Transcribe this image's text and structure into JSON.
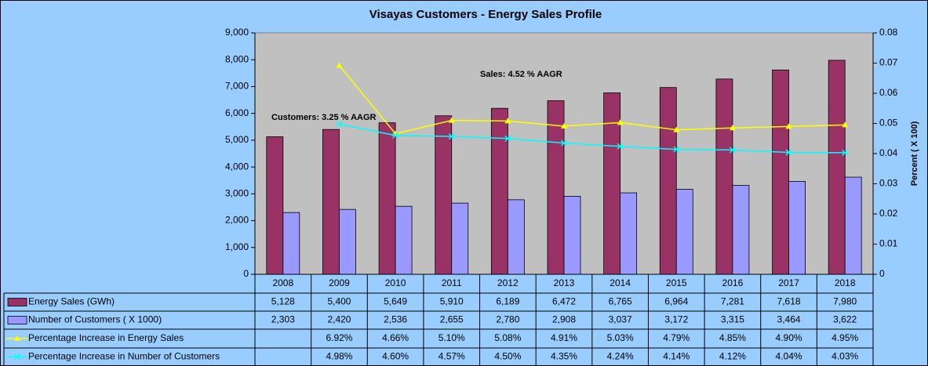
{
  "chart_data": {
    "type": "bar",
    "title": "Visayas Customers - Energy Sales Profile",
    "y2_label": "Percent ( X 100)",
    "annotations": [
      "Sales: 4.52 % AAGR",
      "Customers: 3.25 % AAGR"
    ],
    "categories": [
      "2008",
      "2009",
      "2010",
      "2011",
      "2012",
      "2013",
      "2014",
      "2015",
      "2016",
      "2017",
      "2018"
    ],
    "series": [
      {
        "name": "Energy Sales (GWh)",
        "type": "bar",
        "color": "#993366",
        "values": [
          5128,
          5400,
          5649,
          5910,
          6189,
          6472,
          6765,
          6964,
          7281,
          7618,
          7980
        ],
        "value_labels": [
          "5,128",
          "5,400",
          "5,649",
          "5,910",
          "6,189",
          "6,472",
          "6,765",
          "6,964",
          "7,281",
          "7,618",
          "7,980"
        ]
      },
      {
        "name": "Number of Customers ( X 1000)",
        "type": "bar",
        "color": "#9999ff",
        "values": [
          2303,
          2420,
          2536,
          2655,
          2780,
          2908,
          3037,
          3172,
          3315,
          3464,
          3622
        ],
        "value_labels": [
          "2,303",
          "2,420",
          "2,536",
          "2,655",
          "2,780",
          "2,908",
          "3,037",
          "3,172",
          "3,315",
          "3,464",
          "3,622"
        ]
      },
      {
        "name": "Percentage Increase in Energy Sales",
        "type": "line",
        "axis": "y2",
        "color": "#ffff00",
        "marker": "triangle",
        "values": [
          null,
          0.0692,
          0.0466,
          0.051,
          0.0508,
          0.0491,
          0.0503,
          0.0479,
          0.0485,
          0.049,
          0.0495
        ],
        "value_labels": [
          null,
          "6.92%",
          "4.66%",
          "5.10%",
          "5.08%",
          "4.91%",
          "5.03%",
          "4.79%",
          "4.85%",
          "4.90%",
          "4.95%"
        ]
      },
      {
        "name": "Percentage Increase in Number of Customers",
        "type": "line",
        "axis": "y2",
        "color": "#00ffff",
        "marker": "x",
        "values": [
          null,
          0.0498,
          0.046,
          0.0457,
          0.045,
          0.0435,
          0.0424,
          0.0414,
          0.0412,
          0.0404,
          0.0403
        ],
        "value_labels": [
          null,
          "4.98%",
          "4.60%",
          "4.57%",
          "4.50%",
          "4.35%",
          "4.24%",
          "4.14%",
          "4.12%",
          "4.04%",
          "4.03%"
        ]
      }
    ],
    "ylim": [
      0,
      9000
    ],
    "yticks": [
      0,
      {
        "value": 1000,
        "label": "1,000"
      },
      {
        "value": 2000,
        "label": "2,000"
      },
      {
        "value": 3000,
        "label": "3,000"
      },
      {
        "value": 4000,
        "label": "4,000"
      },
      {
        "value": 5000,
        "label": "5,000"
      },
      {
        "value": 6000,
        "label": "6,000"
      },
      {
        "value": 7000,
        "label": "7,000"
      },
      {
        "value": 8000,
        "label": "8,000"
      },
      {
        "value": 9000,
        "label": "9,000"
      }
    ],
    "y2lim": [
      0,
      0.08
    ],
    "y2ticks": [
      0,
      0.01,
      0.02,
      0.03,
      0.04,
      0.05,
      0.06,
      0.07,
      0.08
    ],
    "plot_background": "#c0c0c0"
  }
}
